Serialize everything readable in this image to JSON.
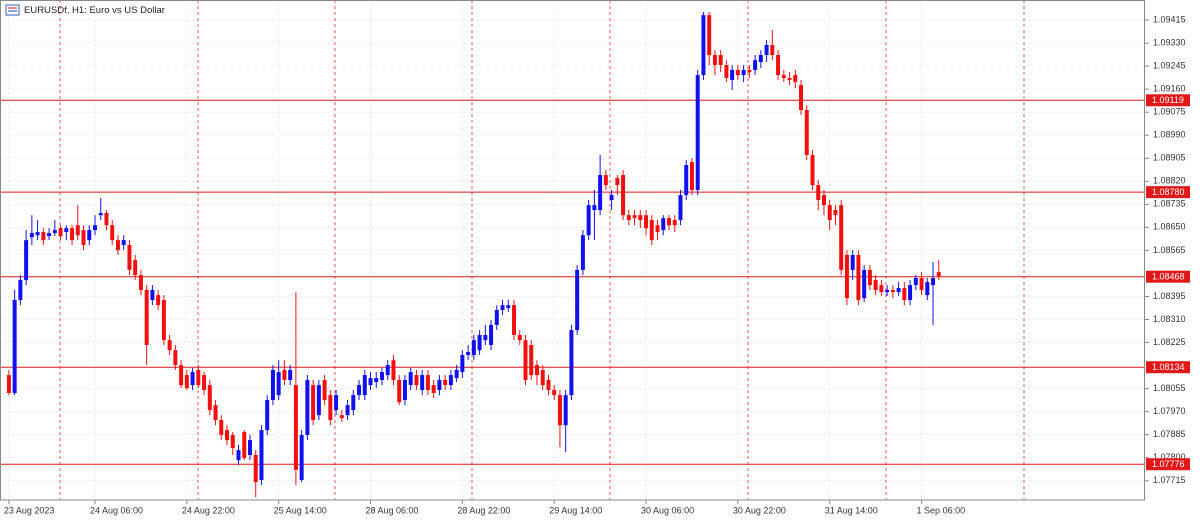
{
  "chart_data": {
    "type": "candlestick",
    "title": "EURUSDf, H1:  Euro vs US Dollar",
    "up_color": "#1010f0",
    "down_color": "#f01010",
    "level_color": "#e01818",
    "grid": true,
    "ylim": [
      1.07644,
      1.09489
    ],
    "yticks": [
      1.09415,
      {
        "value": 1.0933,
        "label": "1.09330"
      },
      1.09245,
      {
        "value": 1.0916,
        "label": "1.09160"
      },
      1.09075,
      {
        "value": 1.0899,
        "label": "1.08990"
      },
      1.08905,
      {
        "value": 1.0882,
        "label": "1.08820"
      },
      1.08735,
      {
        "value": 1.0865,
        "label": "1.08650"
      },
      1.08565,
      1.08395,
      {
        "value": 1.0831,
        "label": "1.08310"
      },
      1.08225,
      1.08055,
      {
        "value": 1.0797,
        "label": "1.07970"
      },
      1.07885,
      {
        "value": 1.078,
        "label": "1.07800"
      },
      1.07715
    ],
    "levels": [
      1.09119,
      {
        "value": 1.0878,
        "label": "1.08780"
      },
      1.08468,
      1.08134,
      1.07776
    ],
    "categories": [
      "23 Aug 2023",
      null,
      null,
      null,
      null,
      null,
      null,
      null,
      null,
      null,
      null,
      null,
      null,
      null,
      null,
      "24 Aug 06:00",
      null,
      null,
      null,
      null,
      null,
      null,
      null,
      null,
      null,
      null,
      null,
      null,
      null,
      null,
      null,
      "24 Aug 22:00",
      null,
      null,
      null,
      null,
      null,
      null,
      null,
      null,
      null,
      null,
      null,
      null,
      null,
      null,
      null,
      "25 Aug 14:00",
      null,
      null,
      null,
      null,
      null,
      null,
      null,
      null,
      null,
      null,
      null,
      null,
      null,
      null,
      null,
      "28 Aug 06:00",
      null,
      null,
      null,
      null,
      null,
      null,
      null,
      null,
      null,
      null,
      null,
      null,
      null,
      null,
      null,
      "28 Aug 22:00",
      null,
      null,
      null,
      null,
      null,
      null,
      null,
      null,
      null,
      null,
      null,
      null,
      null,
      null,
      null,
      "29 Aug 14:00",
      null,
      null,
      null,
      null,
      null,
      null,
      null,
      null,
      null,
      null,
      null,
      null,
      null,
      null,
      null,
      "30 Aug 06:00",
      null,
      null,
      null,
      null,
      null,
      null,
      null,
      null,
      null,
      null,
      null,
      null,
      null,
      null,
      null,
      "30 Aug 22:00",
      null,
      null,
      null,
      null,
      null,
      null,
      null,
      null,
      null,
      null,
      null,
      null,
      null,
      null,
      null,
      "31 Aug 14:00",
      null,
      null,
      null,
      null,
      null,
      null,
      null,
      null,
      null,
      null,
      null,
      null,
      null,
      null,
      null,
      "1 Sep 06:00",
      null,
      null,
      null
    ],
    "ohlc": [
      [
        1.08105,
        1.08124,
        1.08031,
        1.08039
      ],
      [
        1.08039,
        1.08419,
        1.08031,
        1.08382
      ],
      [
        1.08382,
        1.08474,
        1.08363,
        1.08456
      ],
      [
        1.08456,
        1.0864,
        1.08437,
        1.08603
      ],
      [
        1.08614,
        1.08695,
        1.08585,
        1.08629
      ],
      [
        1.08621,
        1.08677,
        1.08603,
        1.08633
      ],
      [
        1.08633,
        1.08647,
        1.08585,
        1.08603
      ],
      [
        1.08618,
        1.08647,
        1.08603,
        1.08629
      ],
      [
        1.08629,
        1.08677,
        1.08618,
        1.0864
      ],
      [
        1.08647,
        1.08658,
        1.08603,
        1.08618
      ],
      [
        1.08633,
        1.08658,
        1.08603,
        1.08647
      ],
      [
        1.08647,
        1.08658,
        1.08585,
        1.08603
      ],
      [
        1.08658,
        1.08732,
        1.08603,
        1.08621
      ],
      [
        1.0864,
        1.08658,
        1.08566,
        1.08585
      ],
      [
        1.08603,
        1.08658,
        1.08585,
        1.0864
      ],
      [
        1.0864,
        1.08695,
        1.08621,
        1.08658
      ],
      [
        1.08695,
        1.08758,
        1.08677,
        1.08703
      ],
      [
        1.08703,
        1.08714,
        1.0864,
        1.08658
      ],
      [
        1.08658,
        1.08677,
        1.08585,
        1.08603
      ],
      [
        1.08603,
        1.08621,
        1.08548,
        1.08566
      ],
      [
        1.08585,
        1.08621,
        1.08566,
        1.08603
      ],
      [
        1.08585,
        1.08603,
        1.08474,
        1.08493
      ],
      [
        1.08529,
        1.08548,
        1.08456,
        1.08474
      ],
      [
        1.08474,
        1.08493,
        1.084,
        1.08419
      ],
      [
        1.08419,
        1.08437,
        1.08142,
        1.08216
      ],
      [
        1.08382,
        1.08437,
        1.08363,
        1.08419
      ],
      [
        1.084,
        1.08419,
        1.08345,
        1.08363
      ],
      [
        1.08382,
        1.084,
        1.08216,
        1.08234
      ],
      [
        1.08234,
        1.08253,
        1.08179,
        1.08197
      ],
      [
        1.08197,
        1.08216,
        1.08124,
        1.08142
      ],
      [
        1.08142,
        1.0816,
        1.08057,
        1.08068
      ],
      [
        1.08105,
        1.08124,
        1.0805,
        1.08057
      ],
      [
        1.08068,
        1.08131,
        1.0805,
        1.08116
      ],
      [
        1.08124,
        1.08142,
        1.08057,
        1.08068
      ],
      [
        1.08105,
        1.08116,
        1.08031,
        1.0805
      ],
      [
        1.08068,
        1.08087,
        1.07957,
        1.07976
      ],
      [
        1.07994,
        1.08013,
        1.0792,
        1.07939
      ],
      [
        1.07939,
        1.07957,
        1.07865,
        1.07884
      ],
      [
        1.07902,
        1.0792,
        1.07847,
        1.07865
      ],
      [
        1.07884,
        1.07895,
        1.0781,
        1.07836
      ],
      [
        1.07791,
        1.07847,
        1.07773,
        1.07828
      ],
      [
        1.07895,
        1.07902,
        1.07791,
        1.07799
      ],
      [
        1.0781,
        1.07884,
        1.07791,
        1.07865
      ],
      [
        1.0781,
        1.07828,
        1.07655,
        1.0771
      ],
      [
        1.07718,
        1.0792,
        1.07699,
        1.07902
      ],
      [
        1.07902,
        1.08031,
        1.07884,
        1.08013
      ],
      [
        1.08013,
        1.08142,
        1.07994,
        1.08124
      ],
      [
        1.08031,
        1.0816,
        1.08013,
        1.08116
      ],
      [
        1.08124,
        1.0816,
        1.08068,
        1.08087
      ],
      [
        1.08087,
        1.08142,
        1.08068,
        1.08124
      ],
      [
        1.08068,
        1.08411,
        1.07699,
        1.07755
      ],
      [
        1.07718,
        1.07902,
        1.0771,
        1.07884
      ],
      [
        1.07884,
        1.08105,
        1.07865,
        1.08087
      ],
      [
        1.08068,
        1.08087,
        1.0792,
        1.07939
      ],
      [
        1.07957,
        1.08087,
        1.07939,
        1.08068
      ],
      [
        1.08087,
        1.08105,
        1.07994,
        1.08013
      ],
      [
        1.08031,
        1.0805,
        1.0792,
        1.07939
      ],
      [
        1.07976,
        1.0805,
        1.07957,
        1.08031
      ],
      [
        1.07957,
        1.07976,
        1.07932,
        1.07946
      ],
      [
        1.07957,
        1.08013,
        1.07939,
        1.07994
      ],
      [
        1.07976,
        1.0805,
        1.07957,
        1.08031
      ],
      [
        1.08031,
        1.08087,
        1.08013,
        1.08068
      ],
      [
        1.08031,
        1.08124,
        1.08013,
        1.08105
      ],
      [
        1.08068,
        1.08116,
        1.0805,
        1.08094
      ],
      [
        1.08079,
        1.08116,
        1.08057,
        1.08094
      ],
      [
        1.08087,
        1.08131,
        1.08068,
        1.08116
      ],
      [
        1.08105,
        1.0816,
        1.08087,
        1.08142
      ],
      [
        1.0816,
        1.08179,
        1.08068,
        1.08087
      ],
      [
        1.08087,
        1.08105,
        1.07994,
        1.08005
      ],
      [
        1.08013,
        1.08105,
        1.07994,
        1.08087
      ],
      [
        1.08068,
        1.08131,
        1.0805,
        1.08116
      ],
      [
        1.08105,
        1.08124,
        1.0805,
        1.08068
      ],
      [
        1.0805,
        1.08124,
        1.08031,
        1.08105
      ],
      [
        1.08105,
        1.08124,
        1.08031,
        1.0805
      ],
      [
        1.08068,
        1.08087,
        1.0802,
        1.08039
      ],
      [
        1.0805,
        1.08105,
        1.08031,
        1.08087
      ],
      [
        1.08087,
        1.08105,
        1.0805,
        1.08068
      ],
      [
        1.08068,
        1.08124,
        1.0805,
        1.08105
      ],
      [
        1.08094,
        1.08142,
        1.08079,
        1.08124
      ],
      [
        1.08116,
        1.08197,
        1.08094,
        1.08179
      ],
      [
        1.08179,
        1.08216,
        1.0816,
        1.0819
      ],
      [
        1.08179,
        1.08253,
        1.0816,
        1.08234
      ],
      [
        1.08197,
        1.08271,
        1.08179,
        1.08253
      ],
      [
        1.08234,
        1.0829,
        1.08216,
        1.08253
      ],
      [
        1.08216,
        1.08308,
        1.08197,
        1.0829
      ],
      [
        1.0829,
        1.08363,
        1.08271,
        1.08345
      ],
      [
        1.08345,
        1.08382,
        1.08327,
        1.08363
      ],
      [
        1.08352,
        1.08382,
        1.08338,
        1.08363
      ],
      [
        1.08363,
        1.08382,
        1.08234,
        1.08253
      ],
      [
        1.08253,
        1.08271,
        1.08216,
        1.08234
      ],
      [
        1.08234,
        1.08253,
        1.08068,
        1.08087
      ],
      [
        1.08216,
        1.08234,
        1.08087,
        1.08105
      ],
      [
        1.08142,
        1.0816,
        1.08068,
        1.08105
      ],
      [
        1.08124,
        1.08142,
        1.0805,
        1.08068
      ],
      [
        1.08087,
        1.08105,
        1.08031,
        1.0805
      ],
      [
        1.0805,
        1.08068,
        1.08013,
        1.08031
      ],
      [
        1.08031,
        1.0805,
        1.07839,
        1.0792
      ],
      [
        1.0792,
        1.0805,
        1.07821,
        1.08031
      ],
      [
        1.08031,
        1.0829,
        1.08013,
        1.08271
      ],
      [
        1.08271,
        1.08511,
        1.08253,
        1.08493
      ],
      [
        1.08493,
        1.0864,
        1.08474,
        1.08621
      ],
      [
        1.08621,
        1.08751,
        1.08603,
        1.08732
      ],
      [
        1.08714,
        1.08788,
        1.08603,
        1.08732
      ],
      [
        1.08714,
        1.08917,
        1.08695,
        1.08843
      ],
      [
        1.08843,
        1.08862,
        1.08788,
        1.08806
      ],
      [
        1.08751,
        1.08788,
        1.08714,
        1.08769
      ],
      [
        1.08832,
        1.08843,
        1.08769,
        1.08806
      ],
      [
        1.08843,
        1.08862,
        1.08677,
        1.08695
      ],
      [
        1.08695,
        1.08714,
        1.08658,
        1.08677
      ],
      [
        1.08695,
        1.08714,
        1.08658,
        1.08684
      ],
      [
        1.08695,
        1.08714,
        1.08647,
        1.08677
      ],
      [
        1.08695,
        1.08714,
        1.08621,
        1.08647
      ],
      [
        1.08677,
        1.08695,
        1.08585,
        1.08603
      ],
      [
        1.08658,
        1.08677,
        1.08603,
        1.08633
      ],
      [
        1.0864,
        1.08695,
        1.08621,
        1.08684
      ],
      [
        1.08684,
        1.08695,
        1.0864,
        1.08658
      ],
      [
        1.08677,
        1.08695,
        1.08633,
        1.08658
      ],
      [
        1.08677,
        1.08788,
        1.08658,
        1.08769
      ],
      [
        1.08769,
        1.08898,
        1.08751,
        1.0888
      ],
      [
        1.08891,
        1.08906,
        1.08769,
        1.08788
      ],
      [
        1.08788,
        1.09231,
        1.08769,
        1.09212
      ],
      [
        1.09212,
        1.09445,
        1.09194,
        1.09433
      ],
      [
        1.09433,
        1.09445,
        1.09249,
        1.09286
      ],
      [
        1.09286,
        1.09304,
        1.09212,
        1.09249
      ],
      [
        1.09286,
        1.09304,
        1.09223,
        1.09249
      ],
      [
        1.09249,
        1.09267,
        1.09186,
        1.09201
      ],
      [
        1.09194,
        1.09249,
        1.09157,
        1.09231
      ],
      [
        1.09231,
        1.09249,
        1.09194,
        1.09212
      ],
      [
        1.09212,
        1.09249,
        1.09186,
        1.09231
      ],
      [
        1.09231,
        1.09249,
        1.09201,
        1.09223
      ],
      [
        1.09231,
        1.09286,
        1.09212,
        1.09267
      ],
      [
        1.0926,
        1.09304,
        1.09238,
        1.09286
      ],
      [
        1.09286,
        1.09341,
        1.0926,
        1.09323
      ],
      [
        1.09323,
        1.09378,
        1.09267,
        1.09286
      ],
      [
        1.09286,
        1.09304,
        1.09194,
        1.09212
      ],
      [
        1.09212,
        1.09231,
        1.09186,
        1.09201
      ],
      [
        1.09201,
        1.09223,
        1.09175,
        1.09194
      ],
      [
        1.09212,
        1.09231,
        1.09164,
        1.09186
      ],
      [
        1.09175,
        1.09194,
        1.09065,
        1.09083
      ],
      [
        1.09083,
        1.09101,
        1.08898,
        1.08917
      ],
      [
        1.08917,
        1.08935,
        1.08788,
        1.08806
      ],
      [
        1.08806,
        1.08825,
        1.08714,
        1.08751
      ],
      [
        1.08769,
        1.08788,
        1.08695,
        1.08732
      ],
      [
        1.08732,
        1.08751,
        1.0864,
        1.08677
      ],
      [
        1.08714,
        1.08732,
        1.08658,
        1.08695
      ],
      [
        1.08732,
        1.08751,
        1.08474,
        1.08493
      ],
      [
        1.08548,
        1.08566,
        1.08363,
        1.08389
      ],
      [
        1.08493,
        1.08566,
        1.08456,
        1.08548
      ],
      [
        1.08548,
        1.08566,
        1.08363,
        1.08382
      ],
      [
        1.08389,
        1.08511,
        1.08375,
        1.08493
      ],
      [
        1.08493,
        1.08511,
        1.08419,
        1.08437
      ],
      [
        1.08456,
        1.08474,
        1.084,
        1.08419
      ],
      [
        1.08437,
        1.08456,
        1.08397,
        1.08411
      ],
      [
        1.08411,
        1.08437,
        1.08397,
        1.08419
      ],
      [
        1.08419,
        1.08437,
        1.08389,
        1.08411
      ],
      [
        1.08411,
        1.08448,
        1.08397,
        1.08426
      ],
      [
        1.08426,
        1.08448,
        1.08363,
        1.08382
      ],
      [
        1.08382,
        1.08456,
        1.08363,
        1.08437
      ],
      [
        1.08437,
        1.08474,
        1.08419,
        1.08463
      ],
      [
        1.08463,
        1.08485,
        1.084,
        1.08419
      ],
      [
        1.084,
        1.08463,
        1.08382,
        1.08448
      ],
      [
        1.08437,
        1.08522,
        1.0829,
        1.08463
      ],
      [
        1.08485,
        1.08529,
        1.08456,
        1.0847
      ]
    ]
  }
}
